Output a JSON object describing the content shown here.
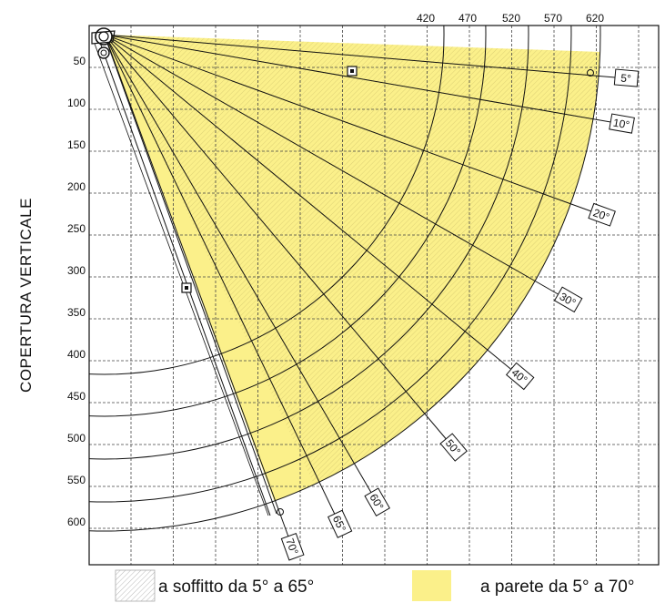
{
  "axis_title": "COPERTURA VERTICALE",
  "y_ticks": [
    "50",
    "100",
    "150",
    "200",
    "250",
    "300",
    "350",
    "400",
    "450",
    "500",
    "550",
    "600"
  ],
  "x_ticks": [
    "420",
    "470",
    "520",
    "570",
    "620"
  ],
  "angles": [
    {
      "deg": 5,
      "label": "5°"
    },
    {
      "deg": 10,
      "label": "10°"
    },
    {
      "deg": 20,
      "label": "20°"
    },
    {
      "deg": 30,
      "label": "30°"
    },
    {
      "deg": 40,
      "label": "40°"
    },
    {
      "deg": 50,
      "label": "50°"
    },
    {
      "deg": 60,
      "label": "60°"
    },
    {
      "deg": 65,
      "label": "65°"
    },
    {
      "deg": 70,
      "label": "70°"
    }
  ],
  "legend": {
    "ceiling": "a soffitto da 5° a 65°",
    "wall": "a parete da 5° a 70°"
  },
  "colors": {
    "wall_fill": "#fbf08a",
    "grid": "#444444",
    "line": "#111111"
  }
}
